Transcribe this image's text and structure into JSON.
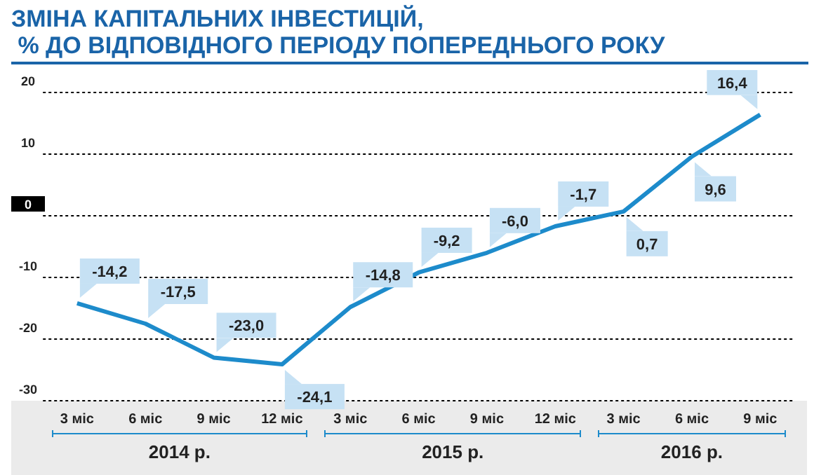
{
  "chart_data": {
    "type": "line",
    "title": "ЗМІНА КАПІТАЛЬНИХ ІНВЕСТИЦІЙ,\n % ДО ВІДПОВІДНОГО ПЕРІОДУ ПОПЕРЕДНЬОГО РОКУ",
    "categories": [
      "3 міс",
      "6 міс",
      "9 міс",
      "12 міс",
      "3 міс",
      "6 міс",
      "9 міс",
      "12 міс",
      "3 міс",
      "6 міс",
      "9 міс"
    ],
    "series": [
      {
        "color": "#1d8bcb",
        "values": [
          -14.2,
          -17.5,
          -23.0,
          -24.1,
          -14.8,
          -9.2,
          -6.0,
          -1.7,
          0.7,
          9.6,
          16.4
        ],
        "value_labels": [
          "-14,2",
          "-17,5",
          "-23,0",
          "-24,1",
          "-14,8",
          "-9,2",
          "-6,0",
          "-1,7",
          "0,7",
          "9,6",
          "16,4"
        ]
      }
    ],
    "annotations": [
      "2014 р.",
      "2015 р.",
      "2016 р."
    ],
    "ylim": [
      -30,
      20
    ],
    "yticks": [
      -30,
      -20,
      -10,
      0,
      10,
      20
    ],
    "grid": "y",
    "marker": "none",
    "line_style": "solid"
  }
}
